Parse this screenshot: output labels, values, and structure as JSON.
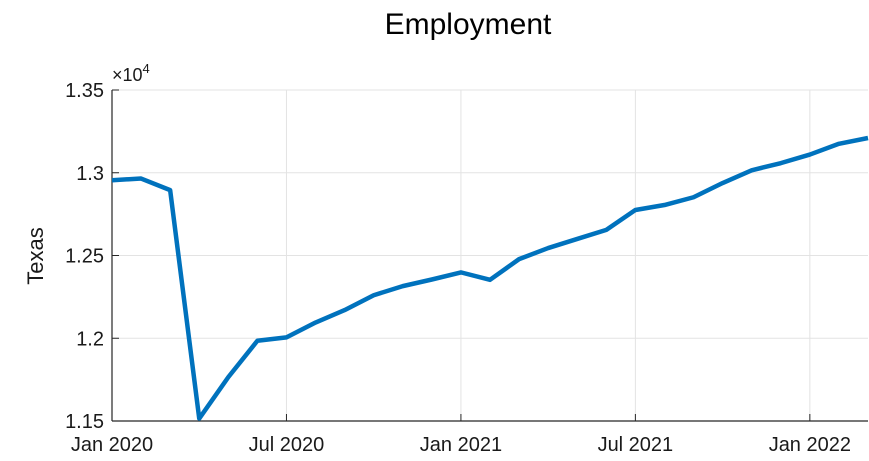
{
  "chart_data": {
    "type": "line",
    "title": "Employment",
    "xlabel": "",
    "ylabel": "Texas",
    "exponent_prefix": "×10",
    "exponent_power": "4",
    "x": [
      "2020-01",
      "2020-02",
      "2020-03",
      "2020-04",
      "2020-05",
      "2020-06",
      "2020-07",
      "2020-08",
      "2020-09",
      "2020-10",
      "2020-11",
      "2020-12",
      "2021-01",
      "2021-02",
      "2021-03",
      "2021-04",
      "2021-05",
      "2021-06",
      "2021-07",
      "2021-08",
      "2021-09",
      "2021-10",
      "2021-11",
      "2021-12",
      "2022-01",
      "2022-02",
      "2022-03"
    ],
    "series": [
      {
        "values": [
          1.2955,
          1.2965,
          1.2895,
          1.1515,
          1.1765,
          1.1985,
          1.2005,
          1.2095,
          1.217,
          1.226,
          1.2315,
          1.2355,
          1.2398,
          1.2353,
          1.2478,
          1.2545,
          1.26,
          1.2655,
          1.2775,
          1.2805,
          1.2852,
          1.2938,
          1.3015,
          1.3058,
          1.311,
          1.3175,
          1.321
        ],
        "color": "#0072BD"
      }
    ],
    "ylim": [
      1.15,
      1.35
    ],
    "yticks": [
      1.15,
      1.2,
      1.25,
      1.3,
      1.35
    ],
    "ytick_labels": [
      "1.15",
      "1.2",
      "1.25",
      "1.3",
      "1.35"
    ],
    "xticks": [
      "2020-01",
      "2020-07",
      "2021-01",
      "2021-07",
      "2022-01"
    ],
    "xtick_labels": [
      "Jan 2020",
      "Jul 2020",
      "Jan 2021",
      "Jul 2021",
      "Jan 2022"
    ],
    "grid": true,
    "axes_box": "left-bottom"
  }
}
